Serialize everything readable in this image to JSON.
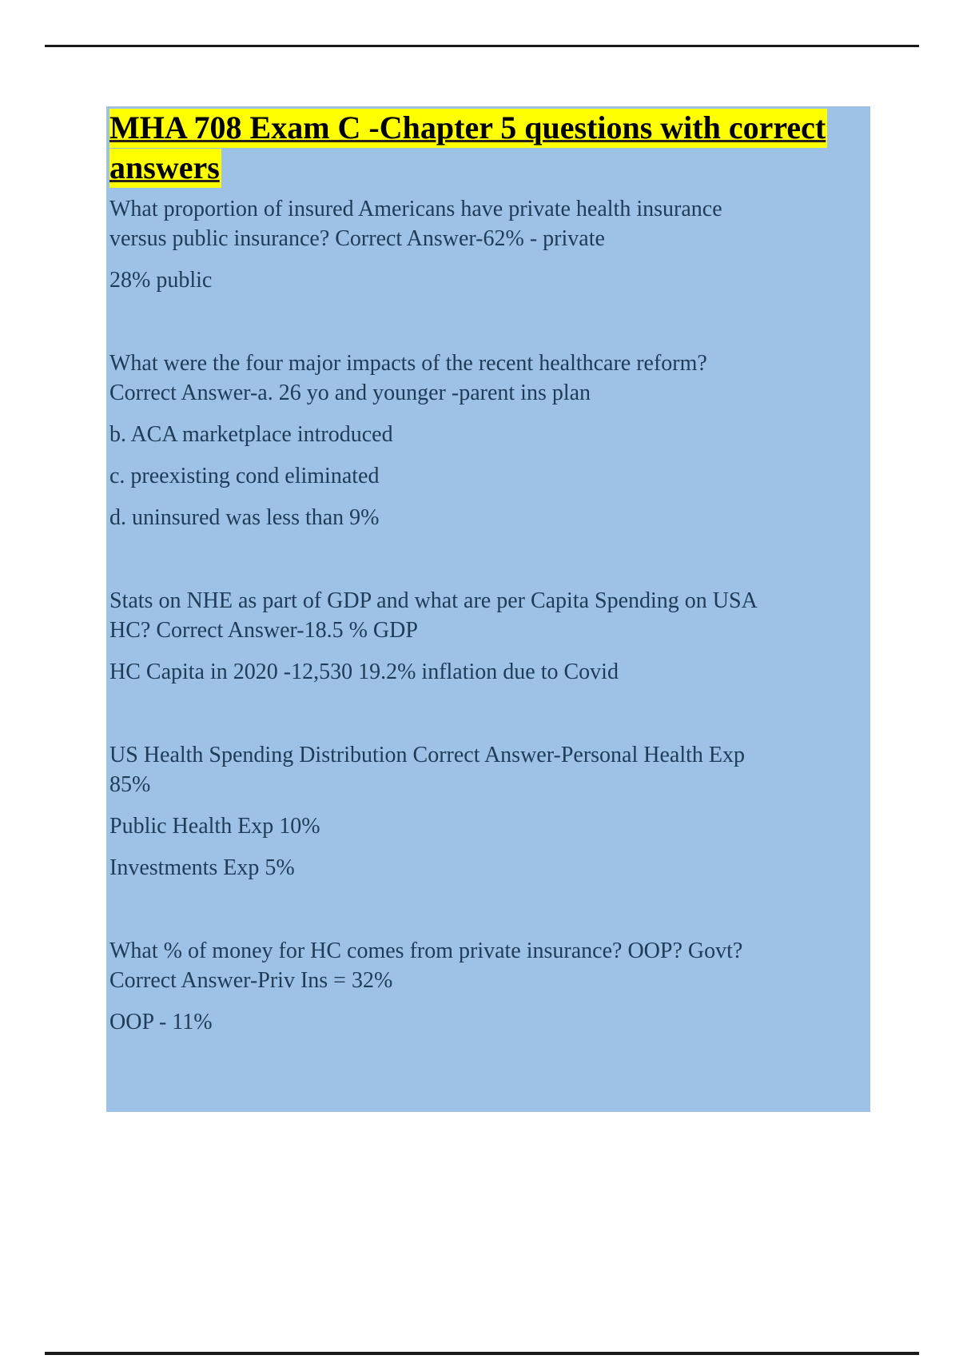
{
  "document": {
    "title": "MHA 708 Exam C -Chapter 5 questions with correct\nanswers",
    "paragraphs": [
      "What proportion of insured Americans have private health insurance\nversus public insurance? Correct Answer-62% - private",
      "28% public",
      "",
      "What were the four major impacts of the recent healthcare reform?\nCorrect Answer-a. 26 yo and younger -parent ins plan",
      "b. ACA marketplace introduced",
      "c. preexisting cond eliminated",
      "d. uninsured was less than 9%",
      "",
      "Stats on NHE as part of GDP and what are per Capita Spending on USA\nHC? Correct Answer-18.5 % GDP",
      "HC Capita in 2020 -12,530 19.2% inflation due to Covid",
      "",
      "US Health Spending Distribution Correct Answer-Personal Health Exp\n85%",
      "Public Health Exp 10%",
      "Investments Exp 5%",
      "",
      "What % of money for HC comes from private insurance? OOP? Govt?\nCorrect Answer-Priv Ins = 32%",
      "OOP - 11%"
    ],
    "colors": {
      "title_highlight": "#ffff00",
      "content_background": "#9ec2e6",
      "body_text": "#1f3b58",
      "title_text": "#000000",
      "rule": "#1a1a1a"
    }
  }
}
